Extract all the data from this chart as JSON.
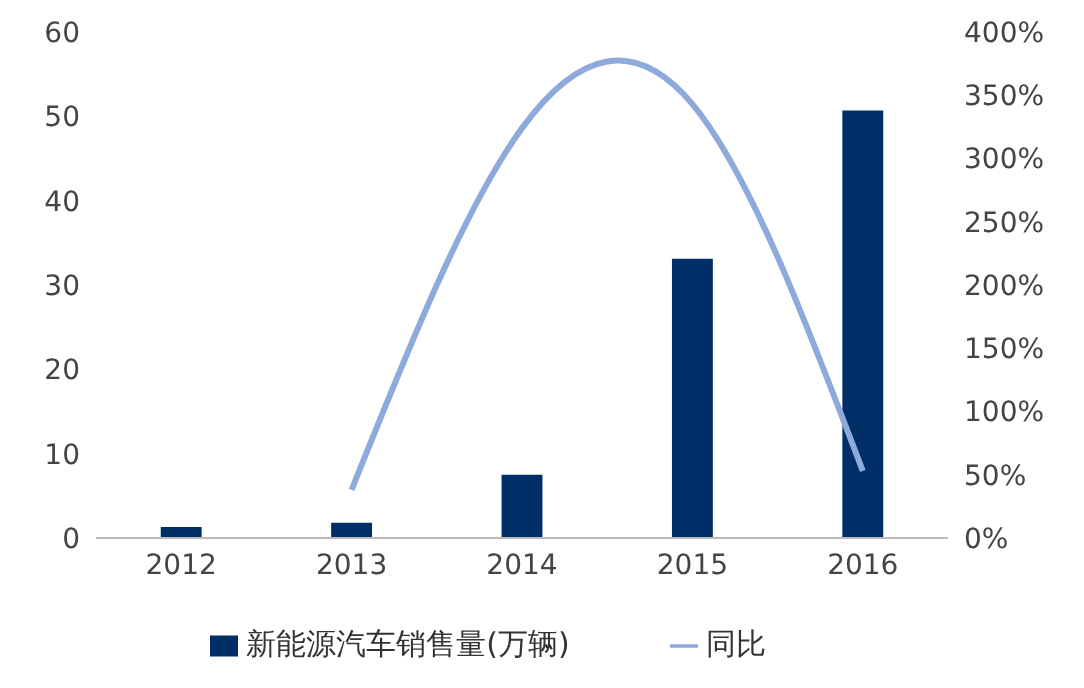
{
  "chart_data": {
    "type": "bar",
    "categories": [
      "2012",
      "2013",
      "2014",
      "2015",
      "2016"
    ],
    "series": [
      {
        "name": "新能源汽车销售量(万辆)",
        "color": "#002f67",
        "values": [
          1.3,
          1.8,
          7.5,
          33.1,
          50.7
        ]
      },
      {
        "name": "同比",
        "type": "line",
        "axis": "y2",
        "color": "#8eaadb",
        "values": [
          null,
          38,
          324,
          343,
          53
        ]
      }
    ],
    "ylim": [
      0,
      60
    ],
    "yticks": [
      0,
      10,
      20,
      30,
      40,
      50,
      60
    ],
    "y2lim": [
      0,
      400
    ],
    "y2ticks": [
      {
        "value": 0,
        "label": "0%"
      },
      {
        "value": 50,
        "label": "50%"
      },
      {
        "value": 100,
        "label": "100%"
      },
      {
        "value": 150,
        "label": "150%"
      },
      {
        "value": 200,
        "label": "200%"
      },
      {
        "value": 250,
        "label": "250%"
      },
      {
        "value": 300,
        "label": "300%"
      },
      {
        "value": 350,
        "label": "350%"
      },
      {
        "value": 400,
        "label": "400%"
      }
    ],
    "legend": "bottom",
    "grid": false,
    "marker": "none"
  }
}
